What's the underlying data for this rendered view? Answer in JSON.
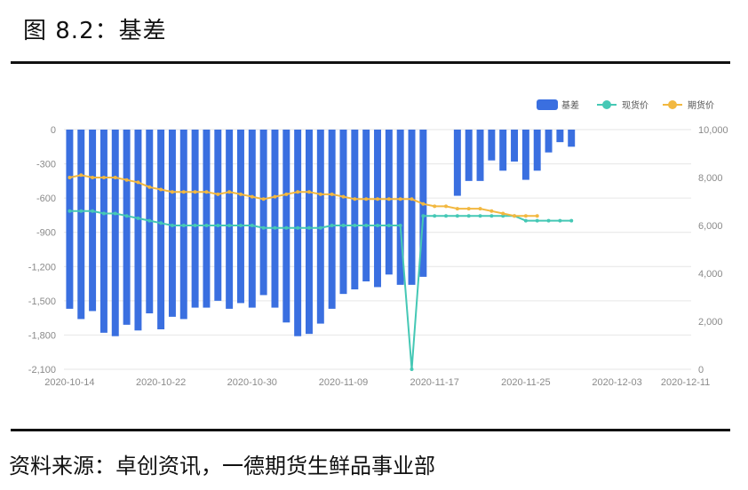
{
  "figure": {
    "title": "图 8.2：基差",
    "source": "资料来源：卓创资讯，一德期货生鲜品事业部"
  },
  "colors": {
    "basis": "#3a6fe0",
    "spot": "#45c8b5",
    "futures": "#f2b840",
    "grid": "#e6e6e6"
  },
  "chart_data": {
    "type": "bar+line",
    "categories": [
      "2020-10-14",
      "2020-10-15",
      "2020-10-16",
      "2020-10-17",
      "2020-10-18",
      "2020-10-19",
      "2020-10-20",
      "2020-10-21",
      "2020-10-22",
      "2020-10-23",
      "2020-10-24",
      "2020-10-25",
      "2020-10-26",
      "2020-10-27",
      "2020-10-28",
      "2020-10-29",
      "2020-10-30",
      "2020-10-31",
      "2020-11-01",
      "2020-11-02",
      "2020-11-03",
      "2020-11-04",
      "2020-11-05",
      "2020-11-06",
      "2020-11-09",
      "2020-11-10",
      "2020-11-11",
      "2020-11-12",
      "2020-11-13",
      "2020-11-14",
      "2020-11-15",
      "2020-11-16",
      "2020-11-17",
      "2020-11-18",
      "2020-11-19",
      "2020-11-20",
      "2020-11-21",
      "2020-11-22",
      "2020-11-23",
      "2020-11-24",
      "2020-11-25",
      "2020-11-26",
      "2020-11-27",
      "2020-11-28",
      "2020-11-29",
      "2020-11-30",
      "2020-12-01",
      "2020-12-02",
      "2020-12-03",
      "2020-12-04",
      "2020-12-07",
      "2020-12-08",
      "2020-12-09",
      "2020-12-10",
      "2020-12-11"
    ],
    "x_tick_labels": [
      "2020-10-14",
      "2020-10-22",
      "2020-10-30",
      "2020-11-09",
      "2020-11-17",
      "2020-11-25",
      "2020-12-03",
      "2020-12-11"
    ],
    "x_tick_indices": [
      0,
      8,
      16,
      24,
      32,
      40,
      48,
      54
    ],
    "series": [
      {
        "name": "基差",
        "type": "bar",
        "axis": "left",
        "values": [
          -1570,
          -1660,
          -1590,
          -1780,
          -1810,
          -1710,
          -1760,
          -1610,
          -1750,
          -1640,
          -1660,
          -1560,
          -1560,
          -1500,
          -1570,
          -1520,
          -1560,
          -1450,
          -1560,
          -1690,
          -1810,
          -1790,
          -1700,
          -1570,
          -1440,
          -1400,
          -1330,
          -1380,
          -1270,
          -1360,
          -1360,
          -1290,
          null,
          null,
          -580,
          -450,
          -450,
          -270,
          -360,
          -280,
          -440,
          -360,
          -200,
          -110,
          -150,
          null,
          null,
          null,
          null,
          null,
          null,
          null,
          null,
          null,
          null
        ]
      },
      {
        "name": "现货价",
        "type": "line",
        "axis": "right",
        "values": [
          6600,
          6600,
          6600,
          6500,
          6500,
          6400,
          6300,
          6200,
          6100,
          6000,
          6000,
          6000,
          6000,
          6000,
          6000,
          6000,
          6000,
          5900,
          5900,
          5900,
          5900,
          5900,
          5900,
          6000,
          6000,
          6000,
          6000,
          6000,
          6000,
          6000,
          0,
          6400,
          6400,
          6400,
          6400,
          6400,
          6400,
          6400,
          6400,
          6400,
          6200,
          6200,
          6200,
          6200,
          6200,
          null,
          null,
          null,
          null,
          null,
          null,
          null,
          null,
          null,
          null
        ]
      },
      {
        "name": "期货价",
        "type": "line",
        "axis": "right",
        "values": [
          8000,
          8100,
          8000,
          8000,
          8000,
          7900,
          7800,
          7600,
          7500,
          7400,
          7400,
          7400,
          7400,
          7300,
          7400,
          7300,
          7200,
          7100,
          7200,
          7300,
          7400,
          7400,
          7300,
          7300,
          7200,
          7100,
          7100,
          7100,
          7100,
          7100,
          7100,
          6900,
          6800,
          6800,
          6700,
          6700,
          6700,
          6600,
          6500,
          6400,
          6400,
          6400,
          null,
          null,
          null,
          null,
          null,
          null,
          null,
          null,
          null,
          null,
          null,
          null,
          null
        ]
      }
    ],
    "y_left": {
      "min": -2100,
      "max": 0,
      "ticks": [
        "0",
        "-300",
        "-600",
        "-900",
        "-1,200",
        "-1,500",
        "-1,800",
        "-2,100"
      ]
    },
    "y_right": {
      "min": 0,
      "max": 10000,
      "ticks": [
        "10,000",
        "8,000",
        "6,000",
        "4,000",
        "2,000",
        "0"
      ]
    },
    "legend": {
      "position": "top-right",
      "items": [
        "基差",
        "现货价",
        "期货价"
      ]
    },
    "grid": true
  }
}
